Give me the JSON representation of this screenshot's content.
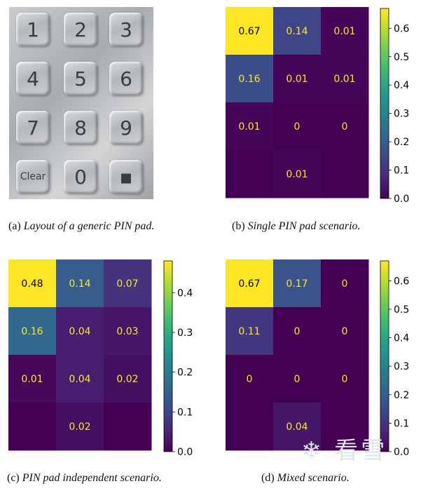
{
  "pinpad": {
    "keys": [
      "1",
      "2",
      "3",
      "4",
      "5",
      "6",
      "7",
      "8",
      "9",
      "Clear",
      "0",
      "▪"
    ]
  },
  "captions": {
    "a": {
      "label": "(a)",
      "text": "Layout of a generic PIN pad."
    },
    "b": {
      "label": "(b)",
      "text": "Single PIN pad scenario."
    },
    "c": {
      "label": "(c)",
      "text": "PIN pad independent scenario."
    },
    "d": {
      "label": "(d)",
      "text": "Mixed scenario."
    }
  },
  "chart_data": [
    {
      "type": "heatmap",
      "rows": 4,
      "cols": 3,
      "values": [
        [
          0.67,
          0.14,
          0.01
        ],
        [
          0.16,
          0.01,
          0.01
        ],
        [
          0.01,
          0.0,
          0.0
        ],
        [
          0.0,
          0.01,
          0.0
        ]
      ],
      "labels": [
        [
          "0.67",
          "0.14",
          "0.01"
        ],
        [
          "0.16",
          "0.01",
          "0.01"
        ],
        [
          "0.01",
          "0",
          "0"
        ],
        [
          "",
          "0.01",
          ""
        ]
      ],
      "vmin": 0.0,
      "vmax": 0.67,
      "colorbar_ticks": [
        "0.0",
        "0.1",
        "0.2",
        "0.3",
        "0.4",
        "0.5",
        "0.6"
      ]
    },
    {
      "type": "heatmap",
      "rows": 4,
      "cols": 3,
      "values": [
        [
          0.48,
          0.14,
          0.07
        ],
        [
          0.16,
          0.04,
          0.03
        ],
        [
          0.01,
          0.04,
          0.02
        ],
        [
          0.0,
          0.02,
          0.0
        ]
      ],
      "labels": [
        [
          "0.48",
          "0.14",
          "0.07"
        ],
        [
          "0.16",
          "0.04",
          "0.03"
        ],
        [
          "0.01",
          "0.04",
          "0.02"
        ],
        [
          "",
          "0.02",
          ""
        ]
      ],
      "vmin": 0.0,
      "vmax": 0.48,
      "colorbar_ticks": [
        "0.0",
        "0.1",
        "0.2",
        "0.3",
        "0.4"
      ]
    },
    {
      "type": "heatmap",
      "rows": 4,
      "cols": 3,
      "values": [
        [
          0.67,
          0.17,
          0.0
        ],
        [
          0.11,
          0.0,
          0.0
        ],
        [
          0.0,
          0.0,
          0.0
        ],
        [
          0.0,
          0.04,
          0.0
        ]
      ],
      "labels": [
        [
          "0.67",
          "0.17",
          "0"
        ],
        [
          "0.11",
          "0",
          "0"
        ],
        [
          "0",
          "0",
          "0"
        ],
        [
          "",
          "0.04",
          ""
        ]
      ],
      "vmin": 0.0,
      "vmax": 0.67,
      "colorbar_ticks": [
        "0.0",
        "0.1",
        "0.2",
        "0.3",
        "0.4",
        "0.5",
        "0.6"
      ]
    }
  ]
}
